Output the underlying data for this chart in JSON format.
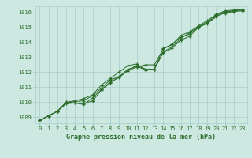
{
  "bg_color": "#cce8e0",
  "grid_color": "#aacccc",
  "line_color": "#2d6e2d",
  "text_color": "#2d6e2d",
  "xlabel": "Graphe pression niveau de la mer (hPa)",
  "xlim": [
    -0.5,
    23.5
  ],
  "ylim": [
    1008.6,
    1016.4
  ],
  "yticks": [
    1009,
    1010,
    1011,
    1012,
    1013,
    1014,
    1015,
    1016
  ],
  "xticks": [
    0,
    1,
    2,
    3,
    4,
    5,
    6,
    7,
    8,
    9,
    10,
    11,
    12,
    13,
    14,
    15,
    16,
    17,
    18,
    19,
    20,
    21,
    22,
    23
  ],
  "hours": [
    0,
    1,
    2,
    3,
    4,
    5,
    6,
    7,
    8,
    9,
    10,
    11,
    12,
    13,
    14,
    15,
    16,
    17,
    18,
    19,
    20,
    21,
    22,
    23
  ],
  "line1": [
    1008.8,
    1009.1,
    1009.4,
    1009.9,
    1009.95,
    1009.85,
    1010.3,
    1010.85,
    1011.35,
    1011.65,
    1012.1,
    1012.35,
    1012.5,
    1012.5,
    1013.55,
    1013.85,
    1014.35,
    1014.55,
    1015.0,
    1015.3,
    1015.75,
    1015.95,
    1016.05,
    1016.1
  ],
  "line2": [
    1008.8,
    1009.1,
    1009.4,
    1009.95,
    1010.05,
    1010.1,
    1010.45,
    1010.95,
    1011.5,
    1011.7,
    1012.15,
    1012.45,
    1012.2,
    1012.2,
    1013.3,
    1013.6,
    1014.15,
    1014.4,
    1015.0,
    1015.25,
    1015.7,
    1016.0,
    1016.1,
    1016.15
  ],
  "line3": [
    1008.8,
    1009.1,
    1009.4,
    1010.0,
    1009.95,
    1009.9,
    1010.1,
    1010.8,
    1011.3,
    1011.7,
    1012.2,
    1012.4,
    1012.15,
    1012.2,
    1013.35,
    1013.7,
    1014.25,
    1014.65,
    1015.05,
    1015.35,
    1015.8,
    1016.05,
    1016.1,
    1016.15
  ],
  "line4": [
    1008.8,
    1009.1,
    1009.4,
    1010.0,
    1010.1,
    1010.25,
    1010.5,
    1011.15,
    1011.6,
    1012.0,
    1012.45,
    1012.55,
    1012.2,
    1012.2,
    1013.6,
    1013.85,
    1014.45,
    1014.7,
    1015.1,
    1015.45,
    1015.85,
    1016.1,
    1016.15,
    1016.2
  ]
}
